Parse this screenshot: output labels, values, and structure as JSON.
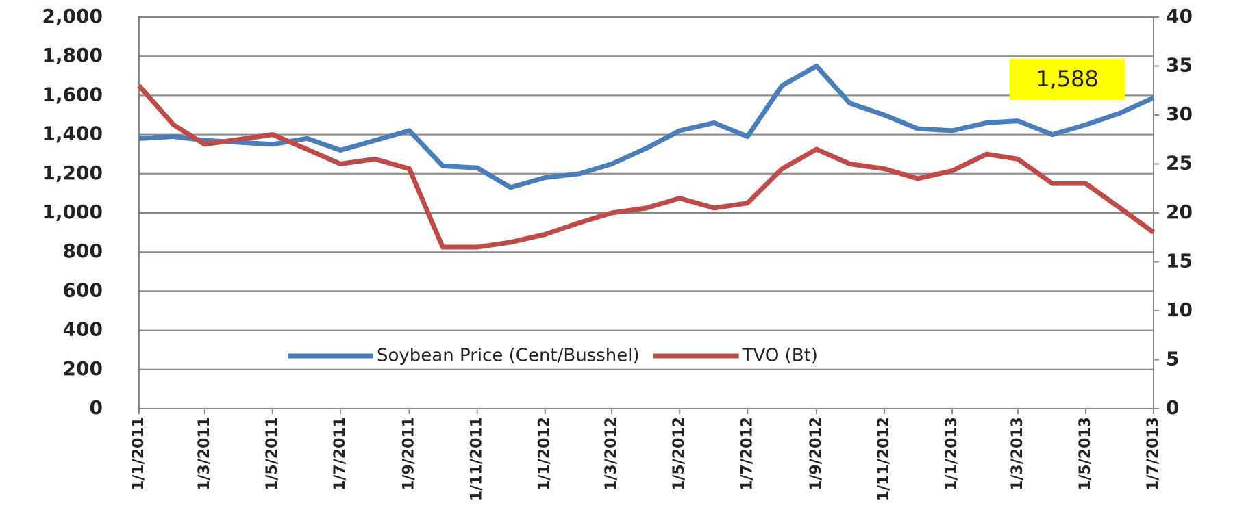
{
  "chart_data": {
    "type": "line",
    "x": [
      "1/1/2011",
      "1/2/2011",
      "1/3/2011",
      "1/4/2011",
      "1/5/2011",
      "1/6/2011",
      "1/7/2011",
      "1/8/2011",
      "1/9/2011",
      "1/10/2011",
      "1/11/2011",
      "1/12/2011",
      "1/1/2012",
      "1/2/2012",
      "1/3/2012",
      "1/4/2012",
      "1/5/2012",
      "1/6/2012",
      "1/7/2012",
      "1/8/2012",
      "1/9/2012",
      "1/10/2012",
      "1/11/2012",
      "1/12/2012",
      "1/1/2013",
      "1/2/2013",
      "1/3/2013",
      "1/4/2013",
      "1/5/2013",
      "1/6/2013",
      "1/7/2013"
    ],
    "xticks": [
      "1/1/2011",
      "1/3/2011",
      "1/5/2011",
      "1/7/2011",
      "1/9/2011",
      "1/11/2011",
      "1/1/2012",
      "1/3/2012",
      "1/5/2012",
      "1/7/2012",
      "1/9/2012",
      "1/11/2012",
      "1/1/2013",
      "1/3/2013",
      "1/5/2013",
      "1/7/2013"
    ],
    "series": [
      {
        "name": "Soybean Price (Cent/Busshel)",
        "color": "#4a7ebb",
        "axis": "y",
        "values": [
          1380,
          1390,
          1370,
          1360,
          1350,
          1380,
          1320,
          1370,
          1420,
          1240,
          1230,
          1130,
          1180,
          1200,
          1250,
          1330,
          1420,
          1460,
          1390,
          1650,
          1750,
          1560,
          1500,
          1430,
          1420,
          1460,
          1470,
          1400,
          1450,
          1510,
          1588
        ]
      },
      {
        "name": "TVO (Bt)",
        "color": "#be4b48",
        "axis": "y2",
        "values": [
          33,
          29,
          27,
          27.5,
          28,
          26.5,
          25,
          25.5,
          24.5,
          16.5,
          16.5,
          17,
          17.8,
          19,
          20,
          20.5,
          21.5,
          20.5,
          21,
          24.5,
          26.5,
          25,
          24.5,
          23.5,
          24.3,
          26,
          25.5,
          23,
          23,
          20.5,
          18
        ]
      }
    ],
    "ylim": [
      0,
      2000
    ],
    "yticks": [
      0,
      200,
      400,
      600,
      800,
      {
        "value": 1000,
        "label": "1,000"
      },
      {
        "value": 1200,
        "label": "1,200"
      },
      {
        "value": 1400,
        "label": "1,400"
      },
      {
        "value": 1600,
        "label": "1,600"
      },
      {
        "value": 1800,
        "label": "1,800"
      },
      {
        "value": 2000,
        "label": "2,000"
      }
    ],
    "y2lim": [
      0,
      40
    ],
    "y2ticks": [
      0,
      5,
      10,
      15,
      20,
      25,
      30,
      35,
      40
    ],
    "grid": true,
    "legend": "bottom",
    "annotation": "1,588"
  }
}
